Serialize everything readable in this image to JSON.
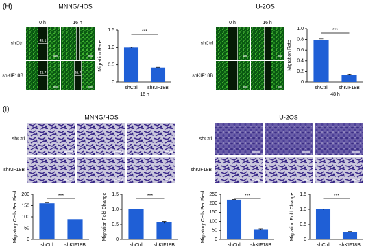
{
  "panel_h": {
    "label": "(H)",
    "groups": [
      {
        "title": "MNNG/HOS",
        "columns": [
          "0 h",
          "16 h"
        ],
        "rows": [
          "shCtrl",
          "shKIF18B"
        ],
        "widths": [
          [
            "43.1"
          ],
          [
            "43.7",
            "29.7"
          ]
        ]
      },
      {
        "title": "U-2OS",
        "columns": [
          "0 h",
          "16 h"
        ],
        "rows": [
          "shCtrl",
          "shKIF18B"
        ]
      }
    ]
  },
  "panel_i": {
    "label": "(I)",
    "groups": [
      {
        "title": "MNNG/HOS",
        "rows": [
          "shCtrl",
          "shKIF18B"
        ]
      },
      {
        "title": "U-2OS",
        "rows": [
          "shCtrl",
          "shKIF18B"
        ]
      }
    ]
  },
  "chart_data": [
    {
      "type": "bar",
      "ylabel": "Migration Rate",
      "xlabel": "16 h",
      "categories": [
        "shCtrl",
        "shKIF18B"
      ],
      "values": [
        1.0,
        0.42
      ],
      "errors": [
        0.01,
        0.01
      ],
      "color": "#1f5fd6",
      "ylim": [
        0,
        1.5
      ],
      "yticks": [
        0,
        0.5,
        {
          "value": 1,
          "label": "1.0"
        },
        1.5
      ],
      "annotation": "***"
    },
    {
      "type": "bar",
      "ylabel": "Migration Rate",
      "xlabel": "48 h",
      "categories": [
        "shCtrl",
        "shKIF18B"
      ],
      "values": [
        0.79,
        0.14
      ],
      "errors": [
        0.02,
        0.01
      ],
      "color": "#1f5fd6",
      "ylim": [
        0,
        1.0
      ],
      "yticks": [
        0,
        0.2,
        0.4,
        0.6,
        0.8,
        {
          "value": 1,
          "label": "1.0"
        }
      ],
      "annotation": "***"
    },
    {
      "type": "bar",
      "ylabel": "Migratory Cells Per Field",
      "categories": [
        "shCtrl",
        "shKIF18B"
      ],
      "values": [
        160,
        90
      ],
      "errors": [
        2,
        6
      ],
      "color": "#1f5fd6",
      "ylim": [
        0,
        200
      ],
      "yticks": [
        0,
        50,
        100,
        150,
        200
      ],
      "annotation": "***"
    },
    {
      "type": "bar",
      "ylabel": "Migration Fold Change",
      "categories": [
        "shCtrl",
        "shKIF18B"
      ],
      "values": [
        1.0,
        0.57
      ],
      "errors": [
        0.01,
        0.03
      ],
      "color": "#1f5fd6",
      "ylim": [
        0,
        1.5
      ],
      "yticks": [
        0,
        0.5,
        {
          "value": 1,
          "label": "1.0"
        },
        1.5
      ],
      "annotation": "***"
    },
    {
      "type": "bar",
      "ylabel": "Migratory Cells Per Field",
      "categories": [
        "shCtrl",
        "shKIF18B"
      ],
      "values": [
        220,
        55
      ],
      "errors": [
        2,
        2
      ],
      "color": "#1f5fd6",
      "ylim": [
        0,
        250
      ],
      "yticks": [
        0,
        50,
        100,
        150,
        200,
        250
      ],
      "annotation": "***"
    },
    {
      "type": "bar",
      "ylabel": "Migration Fold Change",
      "categories": [
        "shCtrl",
        "shKIF18B"
      ],
      "values": [
        1.0,
        0.25
      ],
      "errors": [
        0.01,
        0.01
      ],
      "color": "#1f5fd6",
      "ylim": [
        0,
        1.5
      ],
      "yticks": [
        0,
        0.5,
        {
          "value": 1,
          "label": "1.0"
        },
        1.5
      ],
      "annotation": "***"
    }
  ]
}
